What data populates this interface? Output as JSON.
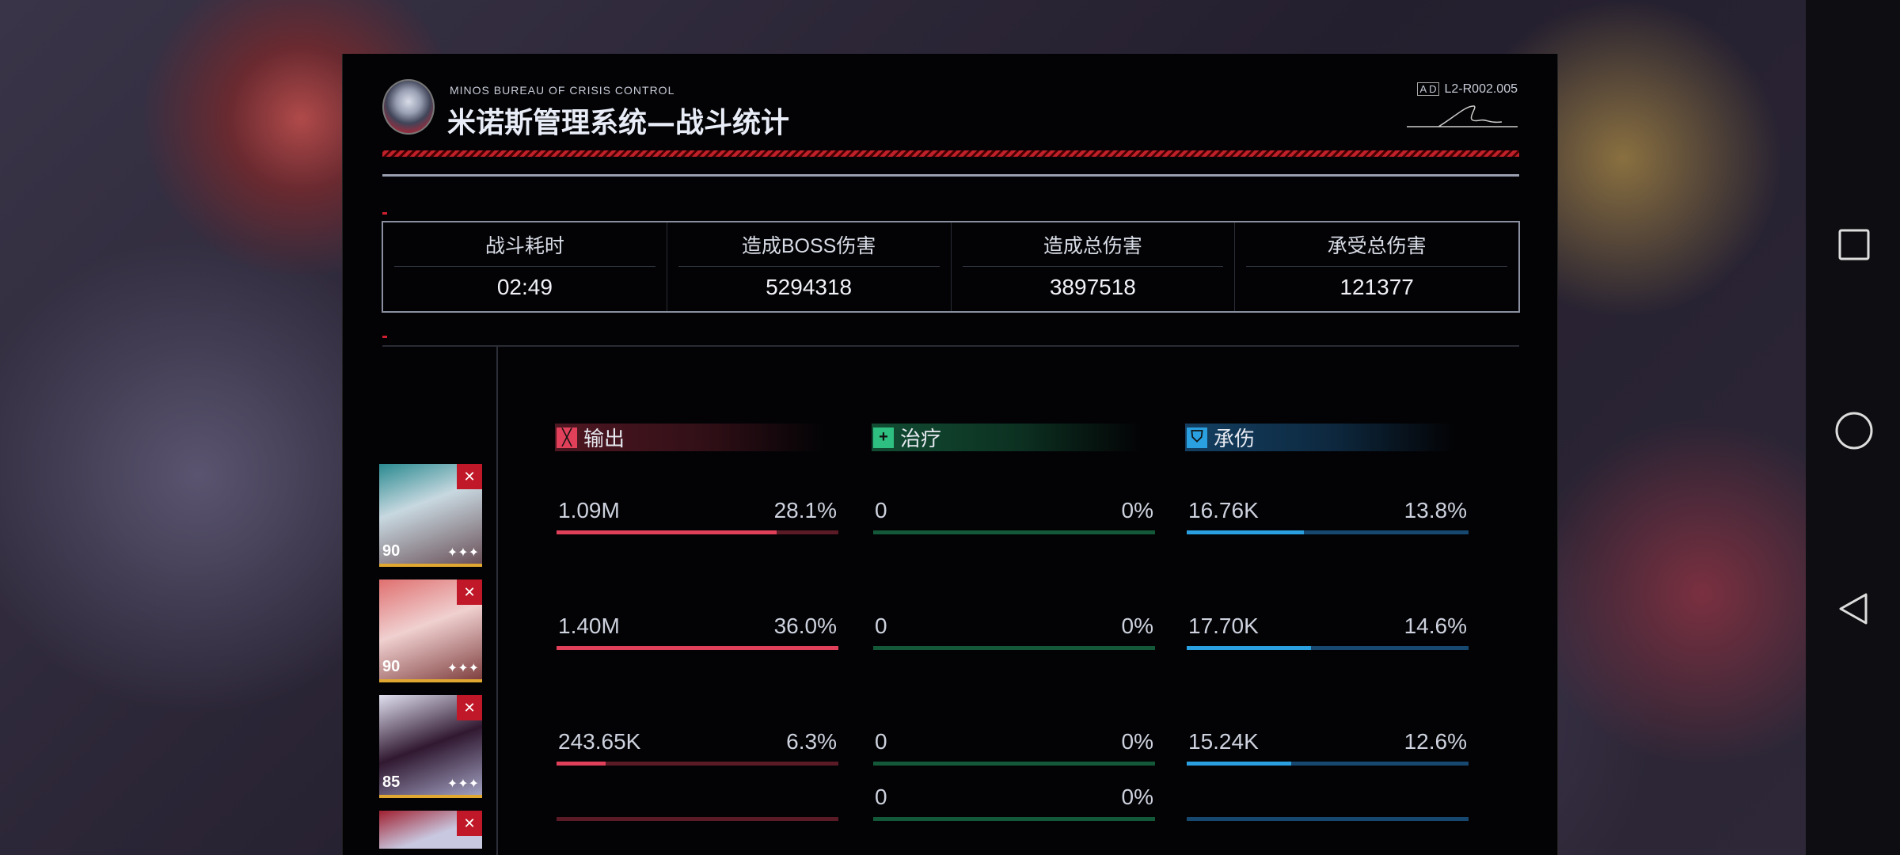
{
  "header": {
    "subtitle": "MINOS BUREAU OF CRISIS CONTROL",
    "title": "米诺斯管理系统—战斗统计",
    "code_tag": "A D",
    "code": "L2-R002.005"
  },
  "stats": [
    {
      "label": "战斗耗时",
      "value": "02:49"
    },
    {
      "label": "造成BOSS伤害",
      "value": "5294318"
    },
    {
      "label": "造成总伤害",
      "value": "3897518"
    },
    {
      "label": "承受总伤害",
      "value": "121377"
    }
  ],
  "columns": {
    "damage": {
      "label": "输出",
      "icon": "sword-icon",
      "color": "#e0405a",
      "track": "#5a1a26"
    },
    "heal": {
      "label": "治疗",
      "icon": "plus-icon",
      "color": "#2ec080",
      "track": "#14583a"
    },
    "tank": {
      "label": "承伤",
      "icon": "shield-icon",
      "color": "#2aa0e0",
      "track": "#164870"
    }
  },
  "operators": [
    {
      "level": "90",
      "stars": "✦✦✦",
      "damage": {
        "value": "1.09M",
        "pct": "28.1%",
        "fill": 0.78
      },
      "heal": {
        "value": "0",
        "pct": "0%",
        "fill": 0
      },
      "tank": {
        "value": "16.76K",
        "pct": "13.8%",
        "fill": 0.415
      }
    },
    {
      "level": "90",
      "stars": "✦✦✦",
      "damage": {
        "value": "1.40M",
        "pct": "36.0%",
        "fill": 1.0
      },
      "heal": {
        "value": "0",
        "pct": "0%",
        "fill": 0
      },
      "tank": {
        "value": "17.70K",
        "pct": "14.6%",
        "fill": 0.44
      }
    },
    {
      "level": "85",
      "stars": "✦✦✦",
      "damage": {
        "value": "243.65K",
        "pct": "6.3%",
        "fill": 0.175
      },
      "heal": {
        "value": "0",
        "pct": "0%",
        "fill": 0
      },
      "tank": {
        "value": "15.24K",
        "pct": "12.6%",
        "fill": 0.37
      }
    },
    {
      "level": "",
      "stars": "",
      "damage": {
        "value": "",
        "pct": "",
        "fill": 0
      },
      "heal": {
        "value": "0",
        "pct": "0%",
        "fill": 0
      },
      "tank": {
        "value": "",
        "pct": "",
        "fill": 0
      }
    }
  ],
  "nav": [
    {
      "icon": "recent-apps-icon"
    },
    {
      "icon": "home-icon"
    },
    {
      "icon": "back-icon"
    }
  ]
}
